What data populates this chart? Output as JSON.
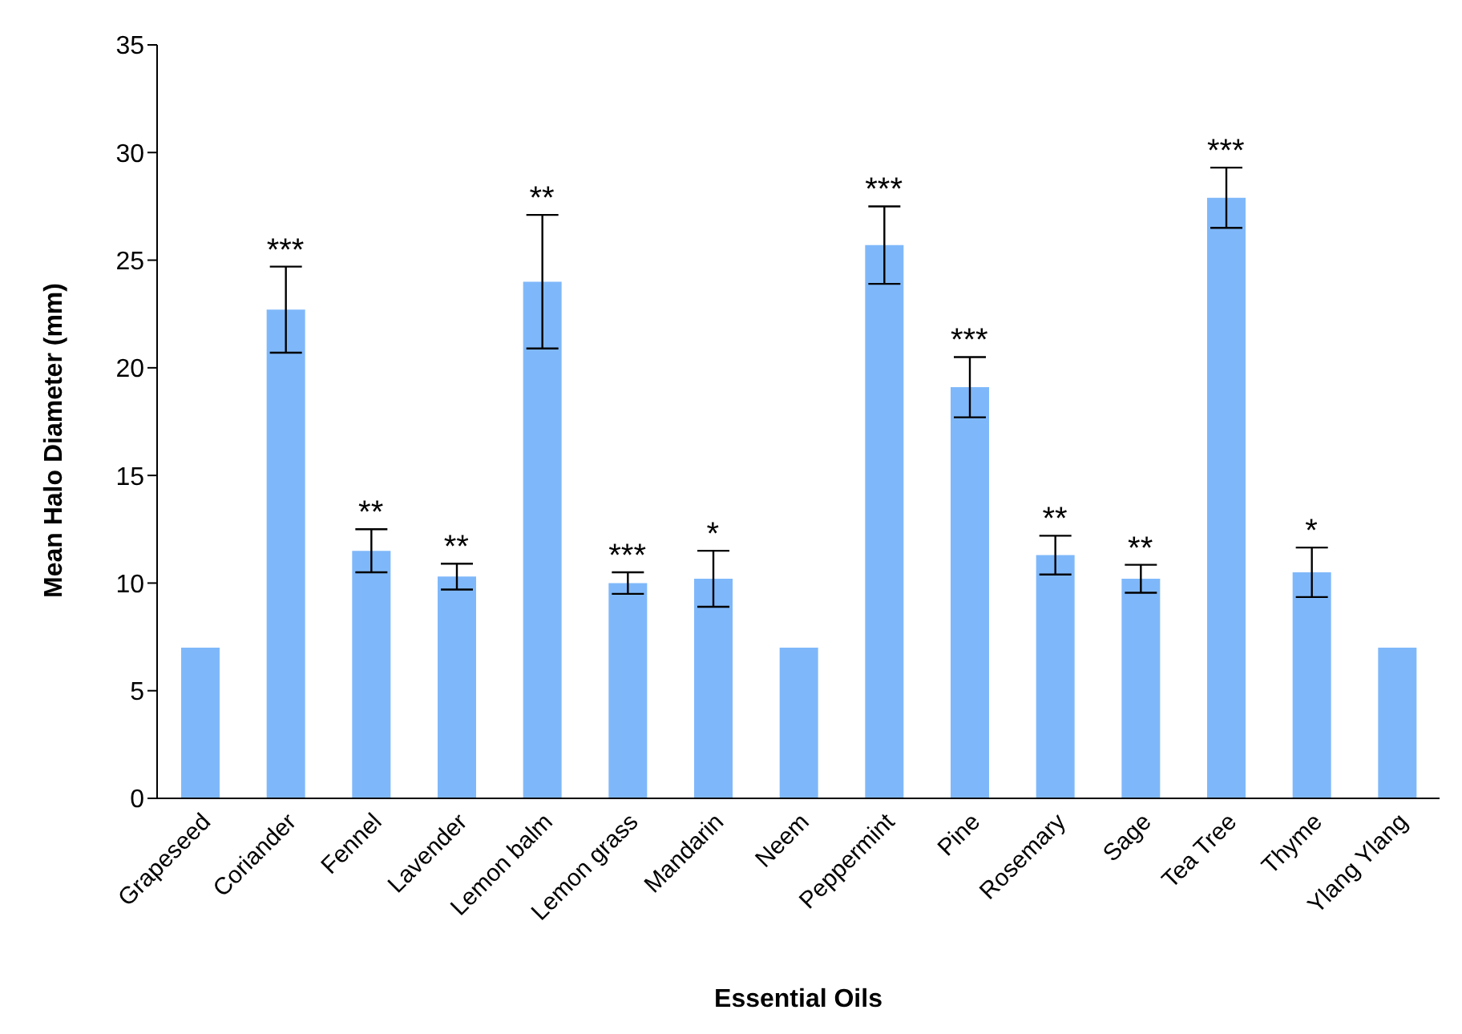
{
  "chart_data": {
    "type": "bar",
    "xlabel": "Essential Oils",
    "ylabel": "Mean Halo Diameter (mm)",
    "categories": [
      "Grapeseed",
      "Coriander",
      "Fennel",
      "Lavender",
      "Lemon balm",
      "Lemon grass",
      "Mandarin",
      "Neem",
      "Peppermint",
      "Pine",
      "Rosemary",
      "Sage",
      "Tea Tree",
      "Thyme",
      "Ylang Ylang"
    ],
    "values": [
      7.0,
      22.7,
      11.5,
      10.3,
      24.0,
      10.0,
      10.2,
      7.0,
      25.7,
      19.1,
      11.3,
      10.2,
      27.9,
      10.5,
      7.0
    ],
    "errors": [
      0,
      2.0,
      1.0,
      0.6,
      3.1,
      0.5,
      1.3,
      0,
      1.8,
      1.4,
      0.9,
      0.65,
      1.4,
      1.15,
      0
    ],
    "color": "#7fb8fa",
    "ylim": [
      0,
      35
    ],
    "yticks": [
      0,
      5,
      10,
      15,
      20,
      25,
      30,
      35
    ],
    "grid": false,
    "legend": false,
    "annotations": [
      {
        "text": "***",
        "x": "Coriander",
        "y": 24.7
      },
      {
        "text": "**",
        "x": "Fennel",
        "y": 12.5
      },
      {
        "text": "**",
        "x": "Lavender",
        "y": 10.9
      },
      {
        "text": "**",
        "x": "Lemon balm",
        "y": 27.1
      },
      {
        "text": "***",
        "x": "Lemon grass",
        "y": 10.5
      },
      {
        "text": "*",
        "x": "Mandarin",
        "y": 11.5
      },
      {
        "text": "***",
        "x": "Peppermint",
        "y": 27.5
      },
      {
        "text": "***",
        "x": "Pine",
        "y": 20.5
      },
      {
        "text": "**",
        "x": "Rosemary",
        "y": 12.2
      },
      {
        "text": "**",
        "x": "Sage",
        "y": 10.85
      },
      {
        "text": "***",
        "x": "Tea Tree",
        "y": 29.3
      },
      {
        "text": "*",
        "x": "Thyme",
        "y": 11.65
      }
    ]
  }
}
